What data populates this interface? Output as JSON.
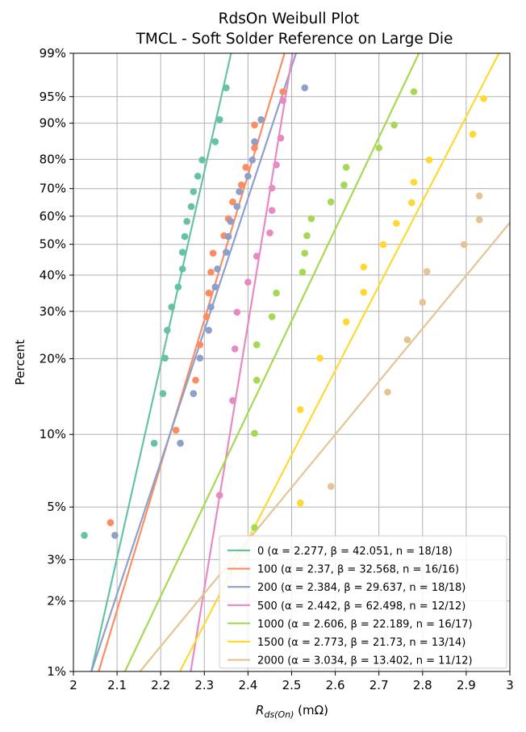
{
  "chart_data": {
    "type": "scatter",
    "title": "RdsOn Weibull Plot",
    "subtitle": "TMCL - Soft Solder Reference on Large Die",
    "xlabel_main": "R",
    "xlabel_sub": "ds(On)",
    "xlabel_unit": " (mΩ)",
    "ylabel": "Percent",
    "xlim": [
      2.0,
      3.0
    ],
    "ylim_percent": [
      1,
      99
    ],
    "y_scale": "weibull",
    "grid": true,
    "legend_position": "lower-right",
    "x_ticks": [
      2.0,
      2.1,
      2.2,
      2.3,
      2.4,
      2.5,
      2.6,
      2.7,
      2.8,
      2.9,
      3.0
    ],
    "x_tick_labels": [
      "2",
      "2.1",
      "2.2",
      "2.3",
      "2.4",
      "2.5",
      "2.6",
      "2.7",
      "2.8",
      "2.9",
      "3"
    ],
    "y_ticks": [
      1,
      2,
      3,
      5,
      10,
      20,
      30,
      40,
      50,
      60,
      70,
      80,
      90,
      95,
      99
    ],
    "y_tick_labels": [
      "1%",
      "2%",
      "3%",
      "5%",
      "10%",
      "20%",
      "30%",
      "40%",
      "50%",
      "60%",
      "70%",
      "80%",
      "90%",
      "95%",
      "99%"
    ],
    "series": [
      {
        "name": "0",
        "legend_label": "0 (α = 2.277, β = 42.051, n = 18/18)",
        "color": "#66c2a5",
        "alpha": 2.277,
        "beta": 42.051,
        "points": [
          [
            2.025,
            3.8
          ],
          [
            2.185,
            9.2
          ],
          [
            2.205,
            14.6
          ],
          [
            2.21,
            20.1
          ],
          [
            2.215,
            25.6
          ],
          [
            2.225,
            31.1
          ],
          [
            2.24,
            36.5
          ],
          [
            2.25,
            41.9
          ],
          [
            2.25,
            47.3
          ],
          [
            2.255,
            52.7
          ],
          [
            2.26,
            58.1
          ],
          [
            2.27,
            63.5
          ],
          [
            2.275,
            68.9
          ],
          [
            2.285,
            74.4
          ],
          [
            2.295,
            79.8
          ],
          [
            2.325,
            85.3
          ],
          [
            2.335,
            90.8
          ],
          [
            2.35,
            96.2
          ]
        ]
      },
      {
        "name": "100",
        "legend_label": "100 (α = 2.37, β = 32.568, n = 16/16)",
        "color": "#fc8d62",
        "alpha": 2.37,
        "beta": 32.568,
        "points": [
          [
            2.085,
            4.3
          ],
          [
            2.235,
            10.4
          ],
          [
            2.28,
            16.5
          ],
          [
            2.29,
            22.6
          ],
          [
            2.305,
            28.7
          ],
          [
            2.31,
            34.8
          ],
          [
            2.315,
            40.9
          ],
          [
            2.32,
            47.0
          ],
          [
            2.345,
            53.0
          ],
          [
            2.355,
            59.1
          ],
          [
            2.365,
            65.2
          ],
          [
            2.385,
            71.3
          ],
          [
            2.395,
            77.4
          ],
          [
            2.415,
            83.5
          ],
          [
            2.415,
            89.6
          ],
          [
            2.48,
            95.7
          ]
        ]
      },
      {
        "name": "200",
        "legend_label": "200 (α = 2.384, β = 29.637, n = 18/18)",
        "color": "#8da0cb",
        "alpha": 2.384,
        "beta": 29.637,
        "points": [
          [
            2.095,
            3.8
          ],
          [
            2.245,
            9.2
          ],
          [
            2.275,
            14.6
          ],
          [
            2.29,
            20.1
          ],
          [
            2.31,
            25.6
          ],
          [
            2.315,
            31.1
          ],
          [
            2.325,
            36.5
          ],
          [
            2.33,
            41.9
          ],
          [
            2.35,
            47.3
          ],
          [
            2.355,
            52.7
          ],
          [
            2.36,
            58.1
          ],
          [
            2.375,
            63.5
          ],
          [
            2.38,
            68.9
          ],
          [
            2.4,
            74.4
          ],
          [
            2.41,
            79.8
          ],
          [
            2.415,
            85.3
          ],
          [
            2.43,
            90.8
          ],
          [
            2.53,
            96.2
          ]
        ]
      },
      {
        "name": "500",
        "legend_label": "500 (α = 2.442, β = 62.498, n = 12/12)",
        "color": "#e78ac3",
        "alpha": 2.442,
        "beta": 62.498,
        "points": [
          [
            2.335,
            5.6
          ],
          [
            2.365,
            13.7
          ],
          [
            2.37,
            21.8
          ],
          [
            2.375,
            29.8
          ],
          [
            2.4,
            37.9
          ],
          [
            2.42,
            46.0
          ],
          [
            2.45,
            54.0
          ],
          [
            2.455,
            62.1
          ],
          [
            2.455,
            70.2
          ],
          [
            2.465,
            78.2
          ],
          [
            2.475,
            86.3
          ],
          [
            2.48,
            94.4
          ]
        ]
      },
      {
        "name": "1000",
        "legend_label": "1000 (α = 2.606, β = 22.189, n = 16/17)",
        "color": "#a6d854",
        "alpha": 2.606,
        "beta": 22.189,
        "points": [
          [
            2.415,
            4.1
          ],
          [
            2.415,
            10.1
          ],
          [
            2.42,
            16.5
          ],
          [
            2.42,
            22.6
          ],
          [
            2.455,
            28.7
          ],
          [
            2.465,
            34.8
          ],
          [
            2.525,
            40.9
          ],
          [
            2.53,
            47.0
          ],
          [
            2.535,
            53.0
          ],
          [
            2.545,
            59.1
          ],
          [
            2.59,
            65.2
          ],
          [
            2.62,
            71.3
          ],
          [
            2.625,
            77.4
          ],
          [
            2.7,
            83.5
          ],
          [
            2.735,
            89.6
          ],
          [
            2.78,
            95.7
          ]
        ]
      },
      {
        "name": "1500",
        "legend_label": "1500 (α = 2.773, β = 21.73, n = 13/14)",
        "color": "#ffd92f",
        "alpha": 2.773,
        "beta": 21.73,
        "points": [
          [
            2.52,
            5.2
          ],
          [
            2.52,
            12.6
          ],
          [
            2.565,
            20.1
          ],
          [
            2.625,
            27.5
          ],
          [
            2.665,
            35.0
          ],
          [
            2.665,
            42.5
          ],
          [
            2.71,
            49.9
          ],
          [
            2.74,
            57.4
          ],
          [
            2.775,
            64.9
          ],
          [
            2.78,
            72.3
          ],
          [
            2.815,
            79.8
          ],
          [
            2.915,
            87.3
          ],
          [
            2.94,
            94.7
          ]
        ]
      },
      {
        "name": "2000",
        "legend_label": "2000 (α = 3.034, β = 13.402, n = 11/12)",
        "color": "#e5c494",
        "alpha": 3.034,
        "beta": 13.402,
        "points": [
          [
            2.59,
            6.1
          ],
          [
            2.72,
            14.8
          ],
          [
            2.765,
            23.6
          ],
          [
            2.8,
            32.3
          ],
          [
            2.81,
            41.1
          ],
          [
            2.895,
            49.9
          ],
          [
            2.93,
            58.7
          ],
          [
            2.93,
            67.4
          ]
        ]
      }
    ]
  }
}
